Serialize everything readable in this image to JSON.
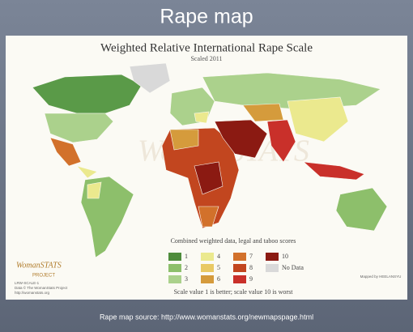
{
  "slide": {
    "title": "Rape map",
    "source": "Rape map source: http://www.womanstats.org/newmapspage.html"
  },
  "map": {
    "title": "Weighted Relative International Rape Scale",
    "subtitle": "Scaled 2011",
    "watermark": "WomanSTATS",
    "legend": {
      "title": "Combined weighted data, legal and taboo scores",
      "items": [
        {
          "label": "1",
          "color": "#4e8c3c"
        },
        {
          "label": "2",
          "color": "#8dbf6b"
        },
        {
          "label": "3",
          "color": "#abd18c"
        },
        {
          "label": "4",
          "color": "#ebe98e"
        },
        {
          "label": "5",
          "color": "#e9c964"
        },
        {
          "label": "6",
          "color": "#d59b3c"
        },
        {
          "label": "7",
          "color": "#d2712b"
        },
        {
          "label": "8",
          "color": "#c2461f"
        },
        {
          "label": "9",
          "color": "#c9302a"
        },
        {
          "label": "10",
          "color": "#8b1a12"
        },
        {
          "label": "No Data",
          "color": "#d9d9d9"
        }
      ],
      "note": "Scale value 1 is better; scale value 10 is worst"
    },
    "logo": {
      "name": "WomanSTATS",
      "sub": "PROJECT",
      "lines": [
        "LRW-SCALE-1",
        "Data © The WomanStats Project",
        "http://womanstats.org"
      ]
    },
    "credit": "Mapped by HEELANSYU"
  }
}
